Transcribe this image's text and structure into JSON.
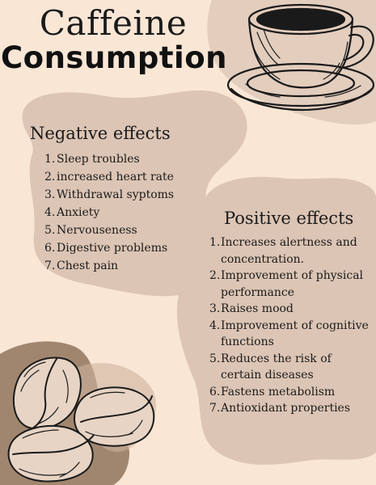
{
  "title": {
    "line1": "Caffeine",
    "line2": "Consumption"
  },
  "negative": {
    "heading": "Negative effects",
    "items": [
      {
        "num": "1.",
        "text": "Sleep troubles"
      },
      {
        "num": "2.",
        "text": "increased heart rate"
      },
      {
        "num": "3.",
        "text": "Withdrawal syptoms"
      },
      {
        "num": "4.",
        "text": "Anxiety"
      },
      {
        "num": "5.",
        "text": "Nervouseness"
      },
      {
        "num": "6.",
        "text": "Digestive problems"
      },
      {
        "num": "7.",
        "text": "Chest pain"
      }
    ]
  },
  "positive": {
    "heading": "Positive effects",
    "items": [
      {
        "num": "1.",
        "text": "Increases alertness and concentration."
      },
      {
        "num": "2.",
        "text": "Improvement of physical performance"
      },
      {
        "num": "3.",
        "text": "Raises mood"
      },
      {
        "num": "4.",
        "text": "Improvement of cognitive functions"
      },
      {
        "num": "5.",
        "text": "Reduces the risk of certain diseases"
      },
      {
        "num": "6.",
        "text": "Fastens metabolism"
      },
      {
        "num": "7.",
        "text": "Antioxidant properties"
      }
    ]
  },
  "illustrations": {
    "cup": "coffee-cup-icon",
    "beans": "coffee-beans-icon"
  },
  "colors": {
    "background": "#f9e6d5",
    "blob_light": "#dcc5b5",
    "blob_mid": "#cdb29f",
    "blob_dark": "#a1866f",
    "ink": "#1a1a1a"
  }
}
